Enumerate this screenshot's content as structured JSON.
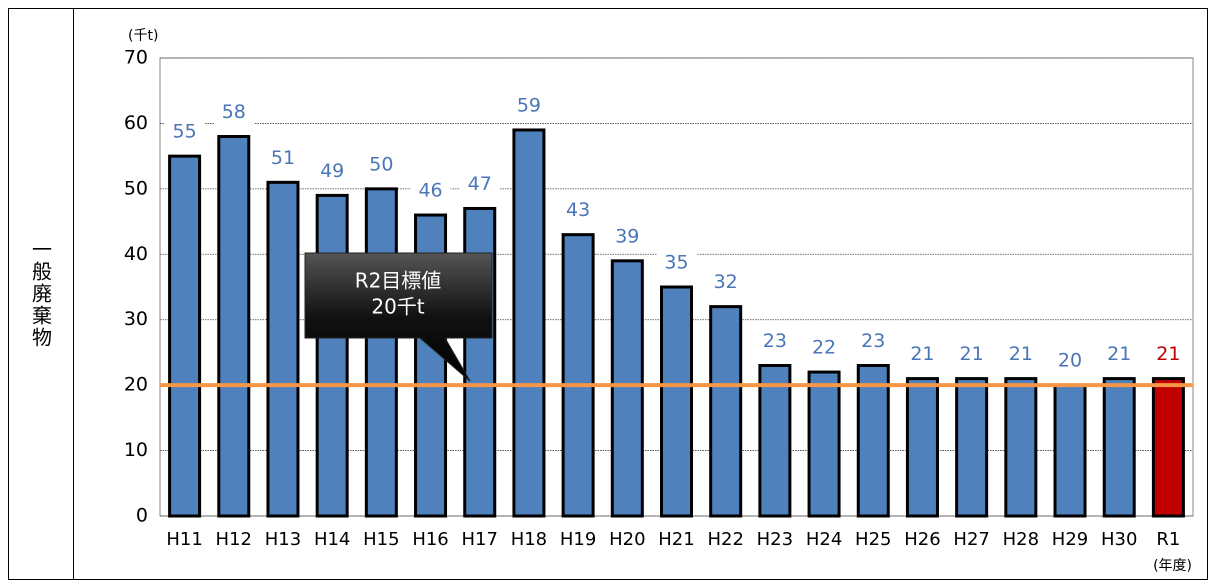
{
  "row_label": "一般廃棄物",
  "chart_data": {
    "type": "bar",
    "y_unit": "(千t)",
    "x_unit": "(年度)",
    "categories": [
      "H11",
      "H12",
      "H13",
      "H14",
      "H15",
      "H16",
      "H17",
      "H18",
      "H19",
      "H20",
      "H21",
      "H22",
      "H23",
      "H24",
      "H25",
      "H26",
      "H27",
      "H28",
      "H29",
      "H30",
      "R1"
    ],
    "values": [
      55,
      58,
      51,
      49,
      50,
      46,
      47,
      59,
      43,
      39,
      35,
      32,
      23,
      22,
      23,
      21,
      21,
      21,
      20,
      21,
      21
    ],
    "colors": [
      "#4f81bd",
      "#4f81bd",
      "#4f81bd",
      "#4f81bd",
      "#4f81bd",
      "#4f81bd",
      "#4f81bd",
      "#4f81bd",
      "#4f81bd",
      "#4f81bd",
      "#4f81bd",
      "#4f81bd",
      "#4f81bd",
      "#4f81bd",
      "#4f81bd",
      "#4f81bd",
      "#4f81bd",
      "#4f81bd",
      "#4f81bd",
      "#4f81bd",
      "#c00000"
    ],
    "label_colors": [
      "#4a76b8",
      "#4a76b8",
      "#4a76b8",
      "#4a76b8",
      "#4a76b8",
      "#4a76b8",
      "#4a76b8",
      "#4a76b8",
      "#4a76b8",
      "#4a76b8",
      "#4a76b8",
      "#4a76b8",
      "#4a76b8",
      "#4a76b8",
      "#4a76b8",
      "#4a76b8",
      "#4a76b8",
      "#4a76b8",
      "#4a76b8",
      "#4a76b8",
      "#c00000"
    ],
    "ylim": [
      0,
      70
    ],
    "yticks": [
      0,
      10,
      20,
      30,
      40,
      50,
      60,
      70
    ],
    "grid": true,
    "target": {
      "value": 20,
      "color": "#f79646",
      "label": [
        "R2目標値",
        "20千t"
      ]
    }
  }
}
